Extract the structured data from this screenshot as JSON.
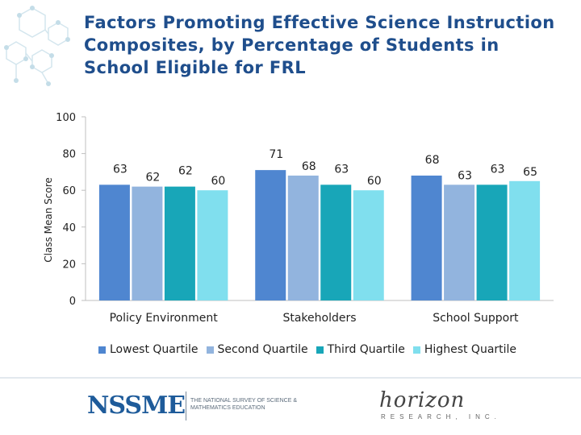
{
  "title": "Factors Promoting Effective Science Instruction Composites, by Percentage of Students in School Eligible for FRL",
  "chart_data": {
    "type": "bar",
    "categories": [
      "Policy Environment",
      "Stakeholders",
      "School Support"
    ],
    "series": [
      {
        "name": "Lowest Quartile",
        "color": "#4f86d0",
        "values": [
          63,
          71,
          68
        ]
      },
      {
        "name": "Second Quartile",
        "color": "#92b4de",
        "values": [
          62,
          68,
          63
        ]
      },
      {
        "name": "Third Quartile",
        "color": "#18a6b8",
        "values": [
          62,
          63,
          63
        ]
      },
      {
        "name": "Highest Quartile",
        "color": "#80dfee",
        "values": [
          60,
          60,
          65
        ]
      }
    ],
    "ylabel": "Class Mean Score",
    "xlabel": "",
    "ylim": [
      0,
      100
    ],
    "yticks": [
      0,
      20,
      40,
      60,
      80,
      100
    ],
    "legend_position": "bottom",
    "grid": false
  },
  "footer": {
    "nssme_logo": "NSSME",
    "nssme_subtitle": "The National Survey of Science & Mathematics Education",
    "horizon_logo": "horizon",
    "horizon_subtitle": "RESEARCH, INC."
  }
}
